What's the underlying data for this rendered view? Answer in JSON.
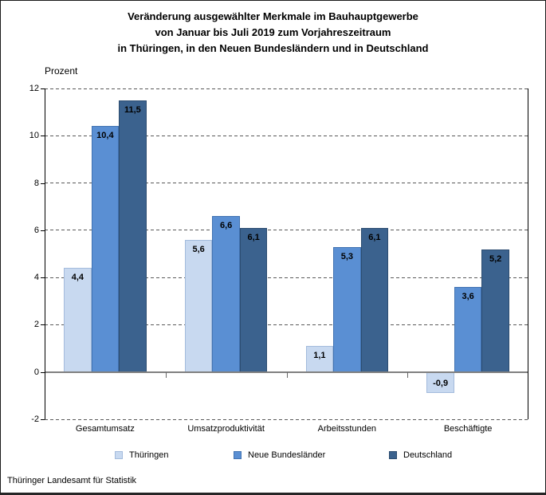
{
  "header": {
    "line1": "Veränderung ausgewählter Merkmale im Bauhauptgewerbe",
    "line2": "von Januar bis Juli 2019 zum Vorjahreszeitraum",
    "line3": "in Thüringen, in den Neuen Bundesländern und in Deutschland"
  },
  "footer": {
    "source": "Thüringer Landesamt für Statistik"
  },
  "chart_data": {
    "type": "bar",
    "title": "Veränderung ausgewählter Merkmale im Bauhauptgewerbe von Januar bis Juli 2019 zum Vorjahreszeitraum in Thüringen, in den Neuen Bundesländern und in Deutschland",
    "ylabel": "Prozent",
    "categories": [
      "Gesamtumsatz",
      "Umsatzproduktivität",
      "Arbeitsstunden",
      "Beschäftigte"
    ],
    "series": [
      {
        "name": "Thüringen",
        "color": "#C8D9F0",
        "border_color": "#A3BBDC",
        "values": [
          4.4,
          5.6,
          1.1,
          -0.9
        ]
      },
      {
        "name": "Neue Bundesländer",
        "color": "#5A8FD3",
        "border_color": "#4173B2",
        "values": [
          10.4,
          6.6,
          5.3,
          3.6
        ]
      },
      {
        "name": "Deutschland",
        "color": "#3B628E",
        "border_color": "#2C4C70",
        "values": [
          11.5,
          6.1,
          6.1,
          5.2
        ]
      }
    ],
    "ylim": [
      -2,
      12
    ],
    "yticks": [
      12,
      10,
      8,
      6,
      4,
      2,
      0,
      -2
    ],
    "grid": "dashed-horizontal",
    "legend_position": "bottom",
    "value_label_format": "comma-decimal",
    "value_labels": {
      "Gesamtumsatz": [
        "4,4",
        "10,4",
        "11,5"
      ],
      "Umsatzproduktivität": [
        "5,6",
        "6,6",
        "6,1"
      ],
      "Arbeitsstunden": [
        "1,1",
        "5,3",
        "6,1"
      ],
      "Beschäftigte": [
        "-0,9",
        "3,6",
        "5,2"
      ]
    }
  }
}
